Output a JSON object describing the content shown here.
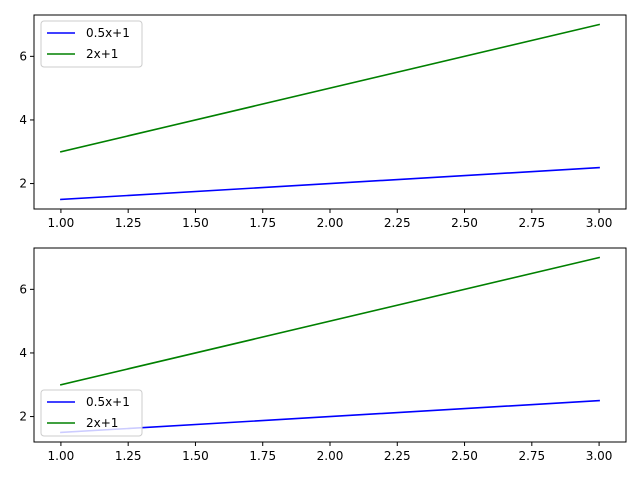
{
  "chart_data": [
    {
      "type": "line",
      "title": "",
      "xlabel": "",
      "ylabel": "",
      "xlim": [
        0.9,
        3.1
      ],
      "ylim": [
        1.2,
        7.3
      ],
      "xticks": [
        1.0,
        1.25,
        1.5,
        1.75,
        2.0,
        2.25,
        2.5,
        2.75,
        3.0
      ],
      "xtick_labels": [
        "1.00",
        "1.25",
        "1.50",
        "1.75",
        "2.00",
        "2.25",
        "2.50",
        "2.75",
        "3.00"
      ],
      "yticks": [
        2,
        4,
        6
      ],
      "ytick_labels": [
        "2",
        "4",
        "6"
      ],
      "grid": false,
      "legend": "upper left",
      "x": [
        1,
        3
      ],
      "series": [
        {
          "name": "0.5x+1",
          "color": "#0000ff",
          "values": [
            1.5,
            2.5
          ]
        },
        {
          "name": "2x+1",
          "color": "#008000",
          "values": [
            3,
            7
          ]
        }
      ]
    },
    {
      "type": "line",
      "title": "",
      "xlabel": "",
      "ylabel": "",
      "xlim": [
        0.9,
        3.1
      ],
      "ylim": [
        1.2,
        7.3
      ],
      "xticks": [
        1.0,
        1.25,
        1.5,
        1.75,
        2.0,
        2.25,
        2.5,
        2.75,
        3.0
      ],
      "xtick_labels": [
        "1.00",
        "1.25",
        "1.50",
        "1.75",
        "2.00",
        "2.25",
        "2.50",
        "2.75",
        "3.00"
      ],
      "yticks": [
        2,
        4,
        6
      ],
      "ytick_labels": [
        "2",
        "4",
        "6"
      ],
      "grid": false,
      "legend": "lower left",
      "x": [
        1,
        3
      ],
      "series": [
        {
          "name": "0.5x+1",
          "color": "#0000ff",
          "values": [
            1.5,
            2.5
          ]
        },
        {
          "name": "2x+1",
          "color": "#008000",
          "values": [
            3,
            7
          ]
        }
      ]
    }
  ]
}
